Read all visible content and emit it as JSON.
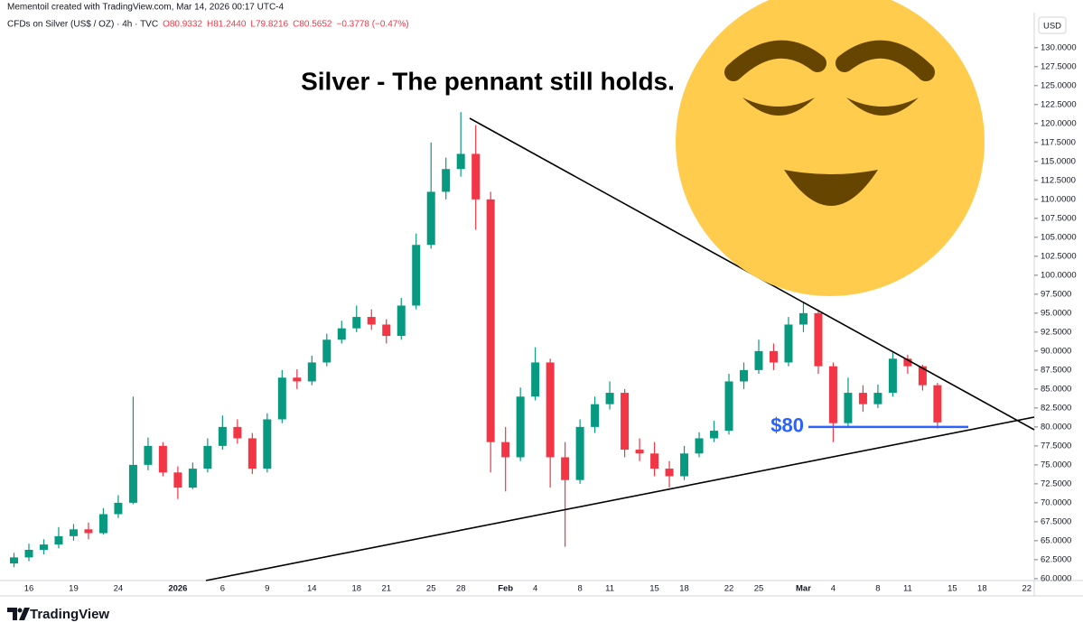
{
  "header": {
    "credit": "Mementoil created with TradingView.com, Mar 14, 2026 00:17 UTC-4",
    "symbol": "CFDs on Silver (US$ / OZ) · 4h · TVC",
    "open": "O80.9332",
    "high": "H81.2440",
    "low": "L79.8216",
    "close": "C80.5652",
    "change": "−0.3778 (−0.47%)"
  },
  "chart_data": {
    "type": "candlestick",
    "title": "Silver - The pennant still holds.",
    "currency": "USD",
    "brand": "TradingView",
    "up_color": "#089981",
    "down_color": "#f23645",
    "categories": [
      null,
      "16",
      null,
      null,
      "19",
      null,
      null,
      "24",
      null,
      null,
      null,
      "2026",
      null,
      null,
      "6",
      null,
      null,
      "9",
      null,
      null,
      "14",
      null,
      null,
      "18",
      null,
      "21",
      null,
      null,
      "25",
      null,
      "28",
      null,
      null,
      "Feb",
      null,
      "4",
      null,
      null,
      "8",
      null,
      "11",
      null,
      null,
      "15",
      null,
      "18",
      null,
      null,
      "22",
      null,
      "25",
      null,
      null,
      "Mar",
      null,
      "4",
      null,
      null,
      "8",
      null,
      "11",
      null,
      null,
      "15",
      null,
      "18",
      null,
      null,
      "22"
    ],
    "open": [
      62.0,
      62.8,
      63.8,
      64.5,
      65.6,
      66.5,
      66.0,
      68.5,
      70.0,
      75.0,
      77.5,
      74.0,
      72.0,
      74.5,
      77.5,
      80.0,
      78.5,
      74.5,
      81.0,
      86.5,
      86.0,
      88.5,
      91.5,
      93.0,
      94.5,
      93.5,
      92.0,
      96.0,
      104.0,
      111.0,
      114.0,
      116.0,
      110.0,
      78.0,
      76.0,
      84.0,
      88.5,
      76.0,
      73.0,
      80.0,
      83.0,
      84.5,
      77.0,
      76.5,
      74.5,
      73.5,
      76.5,
      78.5,
      79.5,
      86.0,
      87.5,
      90.0,
      88.5,
      93.5,
      95.0,
      88.0,
      80.5,
      84.5,
      83.0,
      84.5,
      89.0,
      88.0,
      85.5,
      null,
      null,
      null,
      null,
      null,
      null
    ],
    "high": [
      63.4,
      64.6,
      65.2,
      66.8,
      67.2,
      67.4,
      69.3,
      71.0,
      84.0,
      78.6,
      78.0,
      74.8,
      75.3,
      78.5,
      81.5,
      81.0,
      79.2,
      81.8,
      87.5,
      87.6,
      89.4,
      92.3,
      94.0,
      96.0,
      95.5,
      94.2,
      97.0,
      105.5,
      117.5,
      115.5,
      121.5,
      119.8,
      111.0,
      80.0,
      85.2,
      90.5,
      89.0,
      78.0,
      81.0,
      84.0,
      86.0,
      85.0,
      78.5,
      78.0,
      75.5,
      77.5,
      79.3,
      80.8,
      87.0,
      88.5,
      91.5,
      91.0,
      94.5,
      96.5,
      95.5,
      88.5,
      86.5,
      85.5,
      85.6,
      89.8,
      89.5,
      88.2,
      85.8,
      null,
      null,
      null,
      null,
      null,
      null
    ],
    "low": [
      61.5,
      62.3,
      63.2,
      64.0,
      65.0,
      65.2,
      65.8,
      68.0,
      69.8,
      74.3,
      73.5,
      70.5,
      71.8,
      74.0,
      77.0,
      77.8,
      73.8,
      74.0,
      80.5,
      85.0,
      85.5,
      88.0,
      91.0,
      92.5,
      92.8,
      91.0,
      91.5,
      95.5,
      103.5,
      110.0,
      113.0,
      106.0,
      74.0,
      71.5,
      75.5,
      83.5,
      72.0,
      64.2,
      72.5,
      79.2,
      82.3,
      76.0,
      75.5,
      73.5,
      72.0,
      73.0,
      76.0,
      78.0,
      79.0,
      85.0,
      87.0,
      87.5,
      88.0,
      92.5,
      87.0,
      78.0,
      80.0,
      82.0,
      82.5,
      84.0,
      87.0,
      84.8,
      79.8,
      null,
      null,
      null,
      null,
      null,
      null
    ],
    "close": [
      62.8,
      63.8,
      64.5,
      65.6,
      66.5,
      66.0,
      68.5,
      70.0,
      75.0,
      77.5,
      74.0,
      72.0,
      74.5,
      77.5,
      80.0,
      78.5,
      74.5,
      81.0,
      86.5,
      86.0,
      88.5,
      91.5,
      93.0,
      94.5,
      93.5,
      92.0,
      96.0,
      104.0,
      111.0,
      114.0,
      116.0,
      110.0,
      78.0,
      76.0,
      84.0,
      88.5,
      76.0,
      73.0,
      80.0,
      83.0,
      84.5,
      77.0,
      76.5,
      74.5,
      73.5,
      76.5,
      78.5,
      79.5,
      86.0,
      87.5,
      90.0,
      88.5,
      93.5,
      95.0,
      88.0,
      80.5,
      84.5,
      83.0,
      84.5,
      89.0,
      88.0,
      85.5,
      80.6,
      null,
      null,
      null,
      null,
      null,
      null
    ],
    "level": {
      "value": 80,
      "label": "$80",
      "color": "#2962ff"
    },
    "ylim": [
      59.75,
      134.5
    ],
    "yticks": [
      {
        "value": 60,
        "label": "60.0000"
      },
      {
        "value": 62.5,
        "label": "62.5000"
      },
      {
        "value": 65,
        "label": "65.0000"
      },
      {
        "value": 67.5,
        "label": "67.5000"
      },
      {
        "value": 70,
        "label": "70.0000"
      },
      {
        "value": 72.5,
        "label": "72.5000"
      },
      {
        "value": 75,
        "label": "75.0000"
      },
      {
        "value": 77.5,
        "label": "77.5000"
      },
      {
        "value": 80,
        "label": "80.0000"
      },
      {
        "value": 82.5,
        "label": "82.5000"
      },
      {
        "value": 85,
        "label": "85.0000"
      },
      {
        "value": 87.5,
        "label": "87.5000"
      },
      {
        "value": 90,
        "label": "90.0000"
      },
      {
        "value": 92.5,
        "label": "92.5000"
      },
      {
        "value": 95,
        "label": "95.0000"
      },
      {
        "value": 97.5,
        "label": "97.5000"
      },
      {
        "value": 100,
        "label": "100.0000"
      },
      {
        "value": 102.5,
        "label": "102.5000"
      },
      {
        "value": 105,
        "label": "105.0000"
      },
      {
        "value": 107.5,
        "label": "107.5000"
      },
      {
        "value": 110,
        "label": "110.0000"
      },
      {
        "value": 112.5,
        "label": "112.5000"
      },
      {
        "value": 115,
        "label": "115.0000"
      },
      {
        "value": 117.5,
        "label": "117.5000"
      },
      {
        "value": 120,
        "label": "120.0000"
      },
      {
        "value": 122.5,
        "label": "122.5000"
      },
      {
        "value": 125,
        "label": "125.0000"
      },
      {
        "value": 127.5,
        "label": "127.5000"
      },
      {
        "value": 130,
        "label": "130.0000"
      }
    ]
  }
}
